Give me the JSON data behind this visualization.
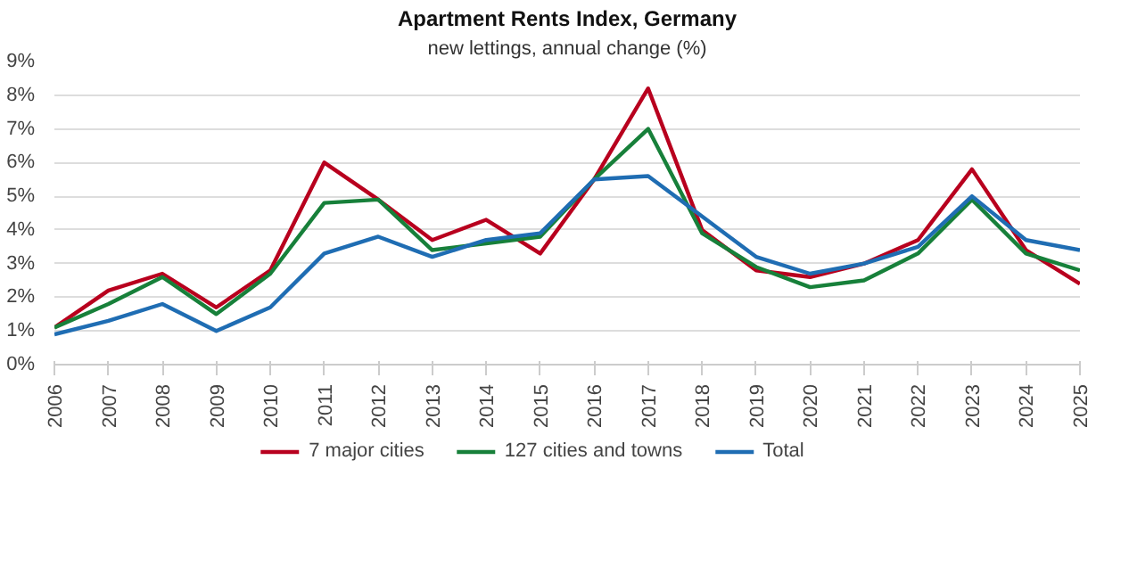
{
  "chart_data": {
    "type": "line",
    "title": "Apartment Rents Index, Germany",
    "subtitle": "new lettings, annual change (%)",
    "categories": [
      "2006",
      "2007",
      "2008",
      "2009",
      "2010",
      "2011",
      "2012",
      "2013",
      "2014",
      "2015",
      "2016",
      "2017",
      "2018",
      "2019",
      "2020",
      "2021",
      "2022",
      "2023",
      "2024",
      "2025"
    ],
    "series": [
      {
        "name": "7 major cities",
        "color": "#b8001e",
        "values": [
          1.1,
          2.2,
          2.7,
          1.7,
          2.8,
          6.0,
          4.9,
          3.7,
          4.3,
          3.3,
          5.5,
          8.2,
          4.0,
          2.8,
          2.6,
          3.0,
          3.7,
          5.8,
          3.4,
          2.4
        ]
      },
      {
        "name": "127 cities and towns",
        "color": "#17803a",
        "values": [
          1.1,
          1.8,
          2.6,
          1.5,
          2.7,
          4.8,
          4.9,
          3.4,
          3.6,
          3.8,
          5.5,
          7.0,
          3.9,
          2.9,
          2.3,
          2.5,
          3.3,
          4.9,
          3.3,
          2.8
        ]
      },
      {
        "name": "Total",
        "color": "#1f6db3",
        "values": [
          0.9,
          1.3,
          1.8,
          1.0,
          1.7,
          3.3,
          3.8,
          3.2,
          3.7,
          3.9,
          5.5,
          5.6,
          4.4,
          3.2,
          2.7,
          3.0,
          3.5,
          5.0,
          3.7,
          3.4
        ]
      }
    ],
    "ylim": [
      0,
      9
    ],
    "yticks": [
      {
        "value": 0,
        "label": "0%"
      },
      {
        "value": 1,
        "label": "1%"
      },
      {
        "value": 2,
        "label": "2%"
      },
      {
        "value": 3,
        "label": "3%"
      },
      {
        "value": 4,
        "label": "4%"
      },
      {
        "value": 5,
        "label": "5%"
      },
      {
        "value": 6,
        "label": "6%"
      },
      {
        "value": 7,
        "label": "7%"
      },
      {
        "value": 8,
        "label": "8%"
      },
      {
        "value": 9,
        "label": "9%"
      }
    ],
    "grid": "y",
    "legend": "bottom",
    "marker": "none",
    "line_style": "solid"
  }
}
